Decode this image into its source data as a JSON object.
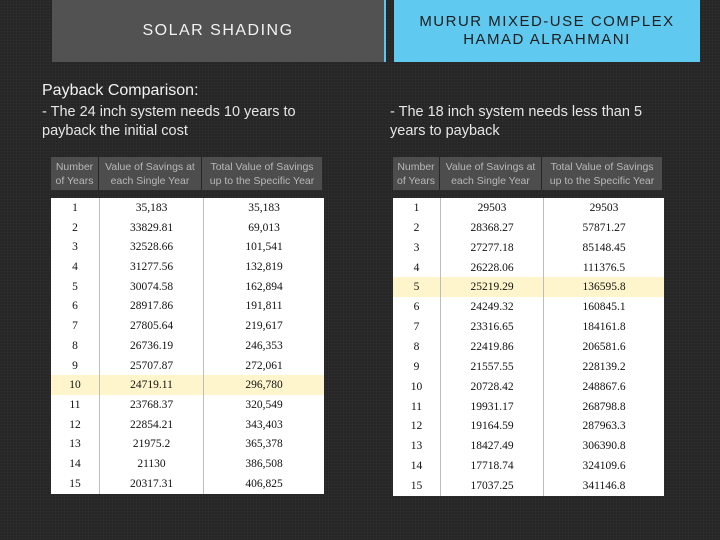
{
  "titles": {
    "left": "SOLAR SHADING",
    "right_line1": "MURUR MIXED-USE COMPLEX",
    "right_line2": "HAMAD ALRAHMANI"
  },
  "subtitle": "Payback Comparison:",
  "notes": {
    "left": "- The 24 inch system needs 10 years to payback the initial cost",
    "right": "- The 18 inch system needs less than 5 years to payback"
  },
  "headers": {
    "c1_line1": "Number",
    "c1_line2": "of Years",
    "c2_line1": "Value of Savings at",
    "c2_line2": "each Single Year",
    "c3_line1": "Total Value of Savings",
    "c3_line2": "up to the Specific Year"
  },
  "colors": {
    "accent": "#5fc9f0",
    "highlight": "#fff5cc"
  },
  "left_table": {
    "highlight_row": 10,
    "rows": [
      [
        "1",
        "35,183",
        "35,183"
      ],
      [
        "2",
        "33829.81",
        "69,013"
      ],
      [
        "3",
        "32528.66",
        "101,541"
      ],
      [
        "4",
        "31277.56",
        "132,819"
      ],
      [
        "5",
        "30074.58",
        "162,894"
      ],
      [
        "6",
        "28917.86",
        "191,811"
      ],
      [
        "7",
        "27805.64",
        "219,617"
      ],
      [
        "8",
        "26736.19",
        "246,353"
      ],
      [
        "9",
        "25707.87",
        "272,061"
      ],
      [
        "10",
        "24719.11",
        "296,780"
      ],
      [
        "11",
        "23768.37",
        "320,549"
      ],
      [
        "12",
        "22854.21",
        "343,403"
      ],
      [
        "13",
        "21975.2",
        "365,378"
      ],
      [
        "14",
        "21130",
        "386,508"
      ],
      [
        "15",
        "20317.31",
        "406,825"
      ]
    ]
  },
  "right_table": {
    "highlight_row": 5,
    "rows": [
      [
        "1",
        "29503",
        "29503"
      ],
      [
        "2",
        "28368.27",
        "57871.27"
      ],
      [
        "3",
        "27277.18",
        "85148.45"
      ],
      [
        "4",
        "26228.06",
        "111376.5"
      ],
      [
        "5",
        "25219.29",
        "136595.8"
      ],
      [
        "6",
        "24249.32",
        "160845.1"
      ],
      [
        "7",
        "23316.65",
        "184161.8"
      ],
      [
        "8",
        "22419.86",
        "206581.6"
      ],
      [
        "9",
        "21557.55",
        "228139.2"
      ],
      [
        "10",
        "20728.42",
        "248867.6"
      ],
      [
        "11",
        "19931.17",
        "268798.8"
      ],
      [
        "12",
        "19164.59",
        "287963.3"
      ],
      [
        "13",
        "18427.49",
        "306390.8"
      ],
      [
        "14",
        "17718.74",
        "324109.6"
      ],
      [
        "15",
        "17037.25",
        "341146.8"
      ]
    ]
  }
}
